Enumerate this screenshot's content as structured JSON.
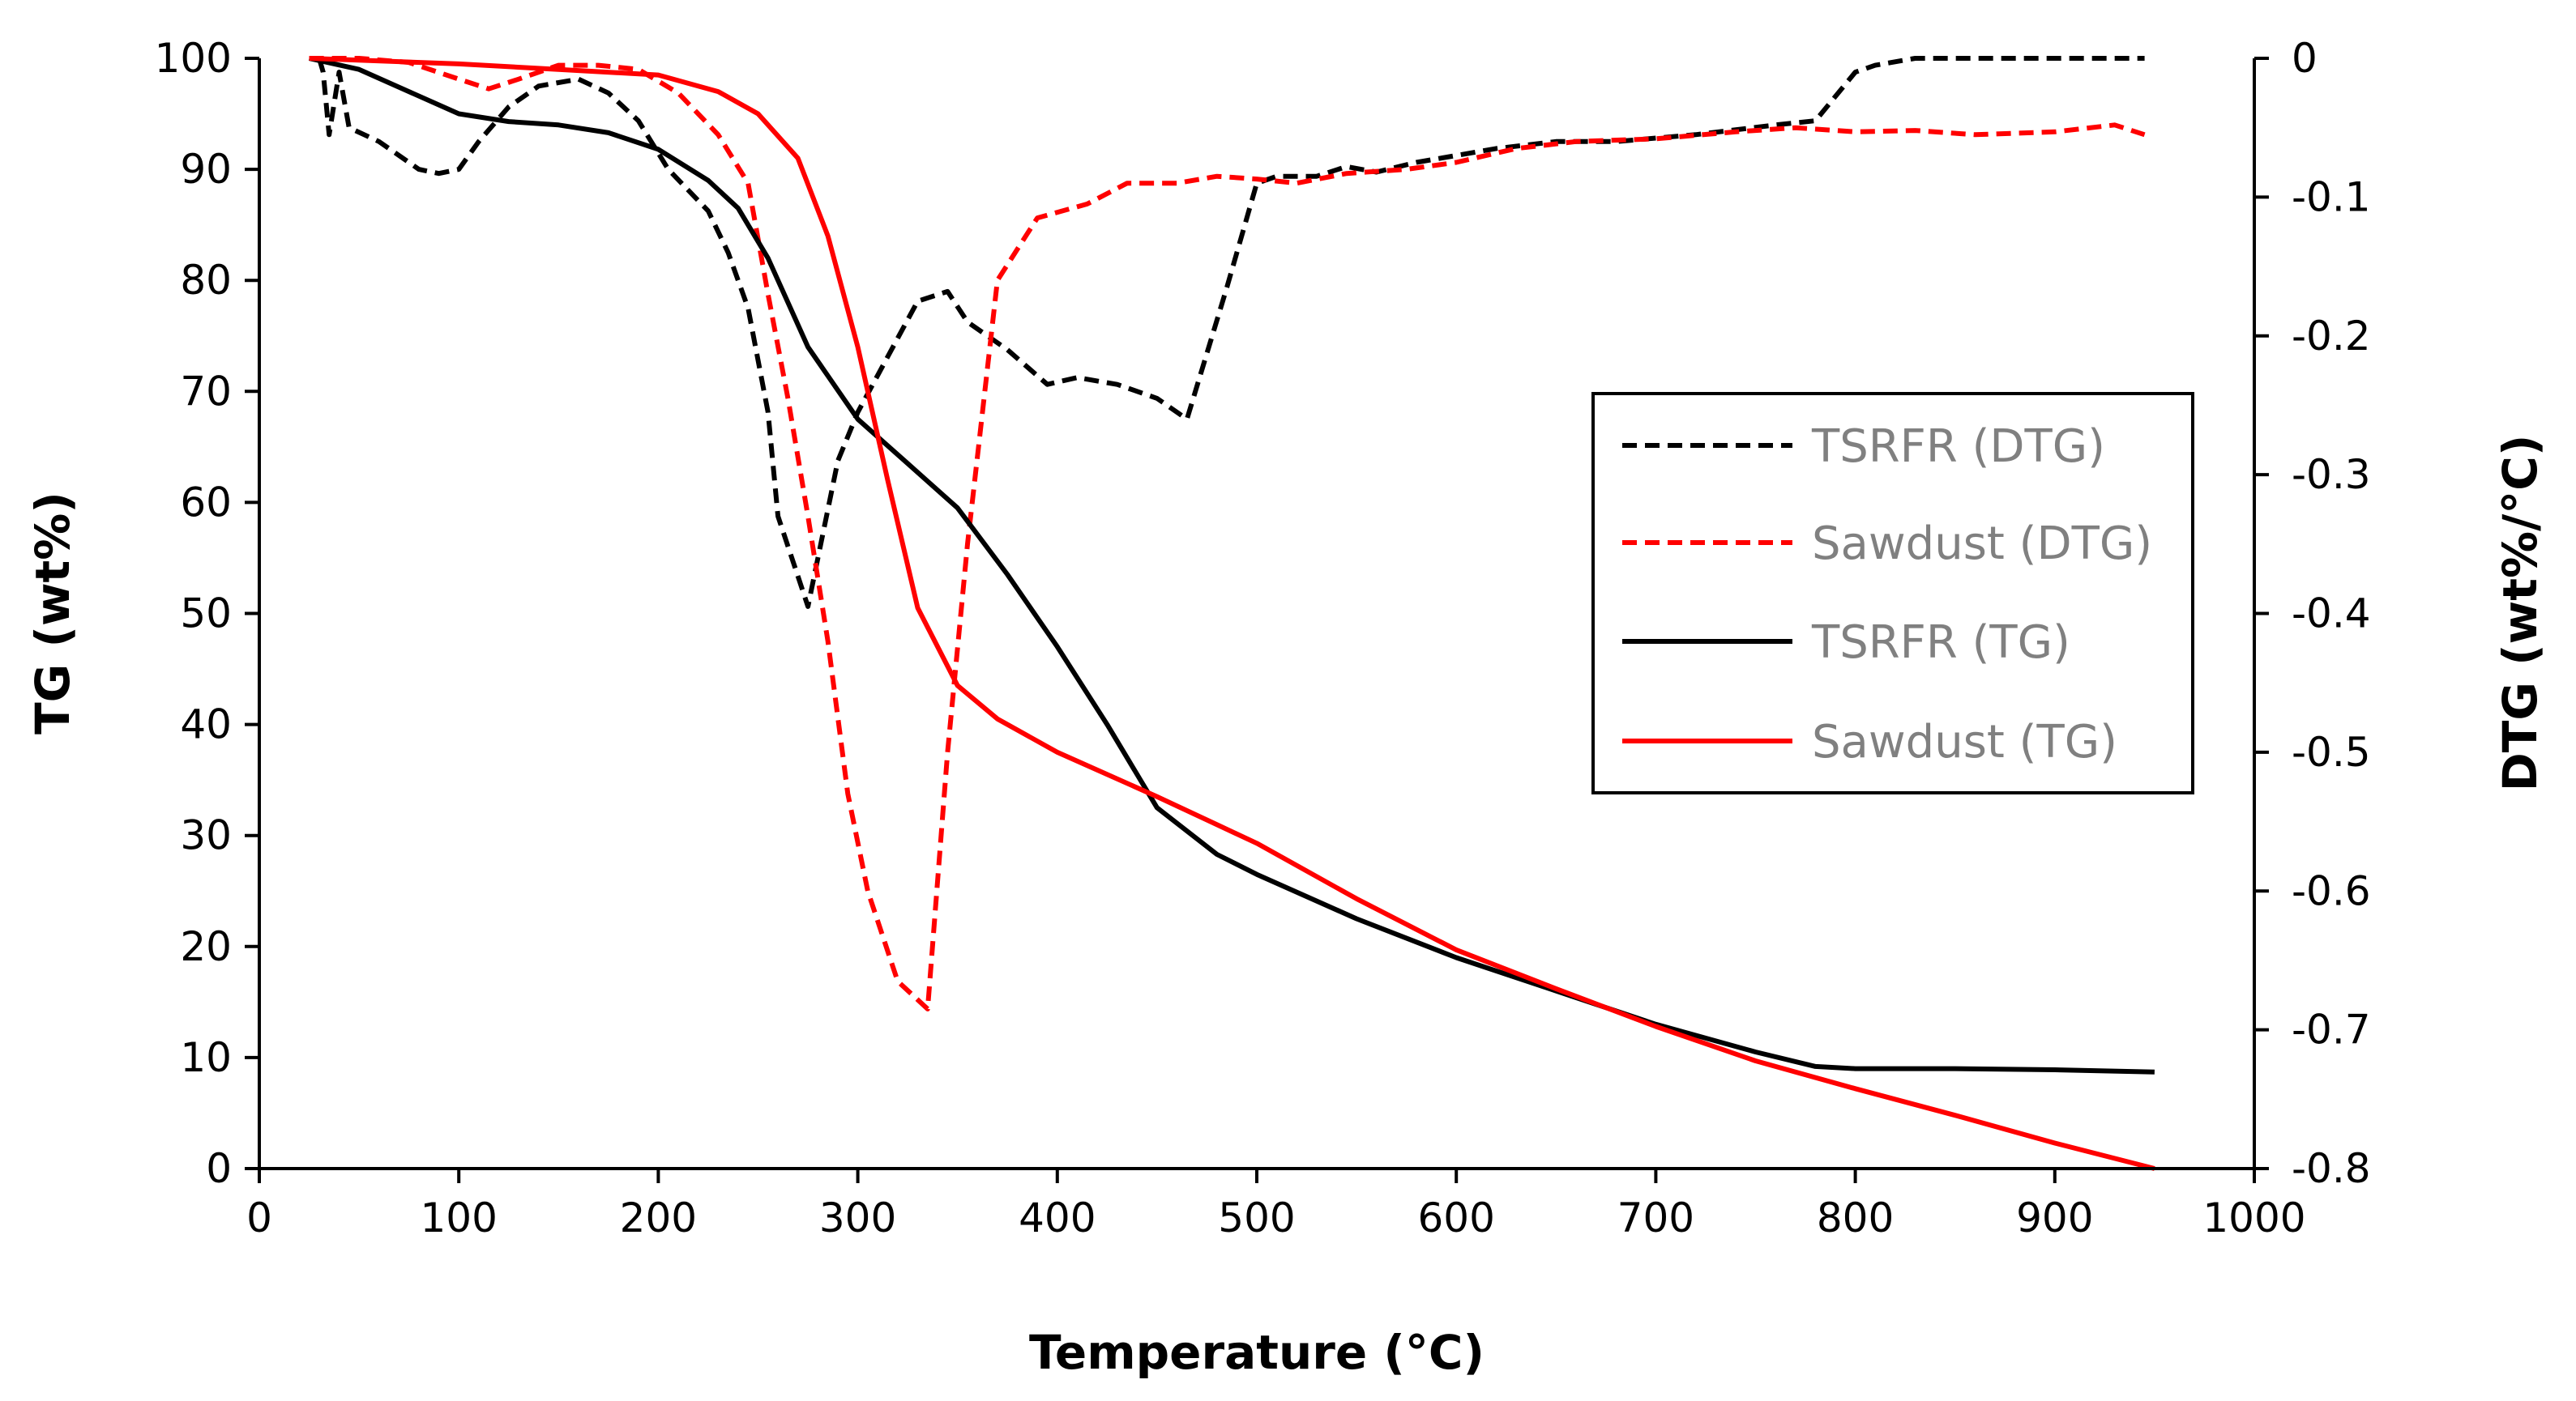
{
  "chart_data": {
    "type": "line",
    "title": "",
    "xlabel": "Temperature (°C)",
    "ylabel_left": "TG (wt%)",
    "ylabel_right": "DTG (wt%/°C)",
    "xlim": [
      0,
      1000
    ],
    "ylim_left": [
      0,
      100
    ],
    "ylim_right": [
      -0.8,
      0
    ],
    "grid": false,
    "legend_position": "center-right",
    "x_ticks": [
      "0",
      "100",
      "200",
      "300",
      "400",
      "500",
      "600",
      "700",
      "800",
      "900",
      "1000"
    ],
    "y_left_ticks": [
      "0",
      "10",
      "20",
      "30",
      "40",
      "50",
      "60",
      "70",
      "80",
      "90",
      "100"
    ],
    "y_right_ticks": [
      "0",
      "-0.1",
      "-0.2",
      "-0.3",
      "-0.4",
      "-0.5",
      "-0.6",
      "-0.7",
      "-0.8"
    ],
    "series": [
      {
        "name": "TSRFR (DTG)",
        "axis": "right",
        "style": "dashed",
        "color": "#000000",
        "x": [
          30,
          32,
          35,
          40,
          45,
          60,
          80,
          90,
          100,
          110,
          125,
          140,
          160,
          175,
          190,
          205,
          225,
          235,
          245,
          255,
          260,
          275,
          290,
          300,
          315,
          330,
          345,
          355,
          375,
          395,
          410,
          430,
          450,
          465,
          485,
          500,
          510,
          530,
          545,
          560,
          580,
          600,
          620,
          650,
          680,
          720,
          760,
          780,
          800,
          810,
          830,
          850,
          880,
          900,
          920,
          945
        ],
        "values": [
          0,
          -0.01,
          -0.055,
          -0.01,
          -0.05,
          -0.06,
          -0.08,
          -0.083,
          -0.08,
          -0.06,
          -0.035,
          -0.02,
          -0.015,
          -0.025,
          -0.045,
          -0.08,
          -0.11,
          -0.14,
          -0.18,
          -0.255,
          -0.33,
          -0.395,
          -0.29,
          -0.255,
          -0.215,
          -0.175,
          -0.168,
          -0.19,
          -0.21,
          -0.235,
          -0.23,
          -0.235,
          -0.245,
          -0.26,
          -0.165,
          -0.09,
          -0.085,
          -0.085,
          -0.078,
          -0.082,
          -0.075,
          -0.07,
          -0.065,
          -0.06,
          -0.06,
          -0.055,
          -0.048,
          -0.045,
          -0.01,
          -0.005,
          0,
          0,
          0,
          0,
          0,
          0
        ]
      },
      {
        "name": "Sawdust (DTG)",
        "axis": "right",
        "style": "dashed",
        "color": "#FF0000",
        "x": [
          25,
          50,
          75,
          100,
          115,
          130,
          150,
          170,
          190,
          210,
          230,
          245,
          255,
          265,
          275,
          285,
          295,
          305,
          320,
          335,
          345,
          355,
          370,
          390,
          415,
          435,
          460,
          480,
          500,
          520,
          545,
          575,
          600,
          630,
          660,
          700,
          740,
          770,
          800,
          830,
          860,
          900,
          930,
          945
        ],
        "values": [
          0,
          0,
          -0.003,
          -0.015,
          -0.022,
          -0.015,
          -0.005,
          -0.005,
          -0.008,
          -0.025,
          -0.055,
          -0.09,
          -0.17,
          -0.245,
          -0.33,
          -0.42,
          -0.53,
          -0.6,
          -0.665,
          -0.685,
          -0.5,
          -0.35,
          -0.16,
          -0.115,
          -0.105,
          -0.09,
          -0.09,
          -0.085,
          -0.087,
          -0.09,
          -0.083,
          -0.08,
          -0.075,
          -0.065,
          -0.06,
          -0.058,
          -0.053,
          -0.05,
          -0.053,
          -0.052,
          -0.055,
          -0.053,
          -0.048,
          -0.055
        ]
      },
      {
        "name": "TSRFR (TG)",
        "axis": "left",
        "style": "solid",
        "color": "#000000",
        "x": [
          25,
          50,
          75,
          100,
          125,
          150,
          175,
          200,
          225,
          240,
          255,
          275,
          300,
          325,
          350,
          375,
          400,
          425,
          450,
          480,
          500,
          550,
          600,
          650,
          700,
          750,
          780,
          800,
          850,
          900,
          950
        ],
        "values": [
          100,
          99,
          97,
          95,
          94.3,
          94,
          93.3,
          91.8,
          89,
          86.5,
          82,
          74,
          67.5,
          63.5,
          59.5,
          53.5,
          47,
          40,
          32.5,
          28.3,
          26.5,
          22.5,
          19,
          16,
          13,
          10.5,
          9.2,
          9,
          9,
          8.9,
          8.7
        ]
      },
      {
        "name": "Sawdust (TG)",
        "axis": "left",
        "style": "solid",
        "color": "#FF0000",
        "x": [
          25,
          100,
          150,
          200,
          230,
          250,
          270,
          285,
          300,
          315,
          330,
          350,
          370,
          400,
          450,
          500,
          550,
          600,
          650,
          700,
          750,
          800,
          850,
          900,
          950
        ],
        "values": [
          100,
          99.5,
          99,
          98.5,
          97,
          95,
          91,
          84,
          74,
          62,
          50.5,
          43.5,
          40.5,
          37.5,
          33.5,
          29.3,
          24.3,
          19.7,
          16.2,
          12.8,
          9.7,
          7.2,
          4.8,
          2.3,
          0
        ]
      }
    ]
  }
}
